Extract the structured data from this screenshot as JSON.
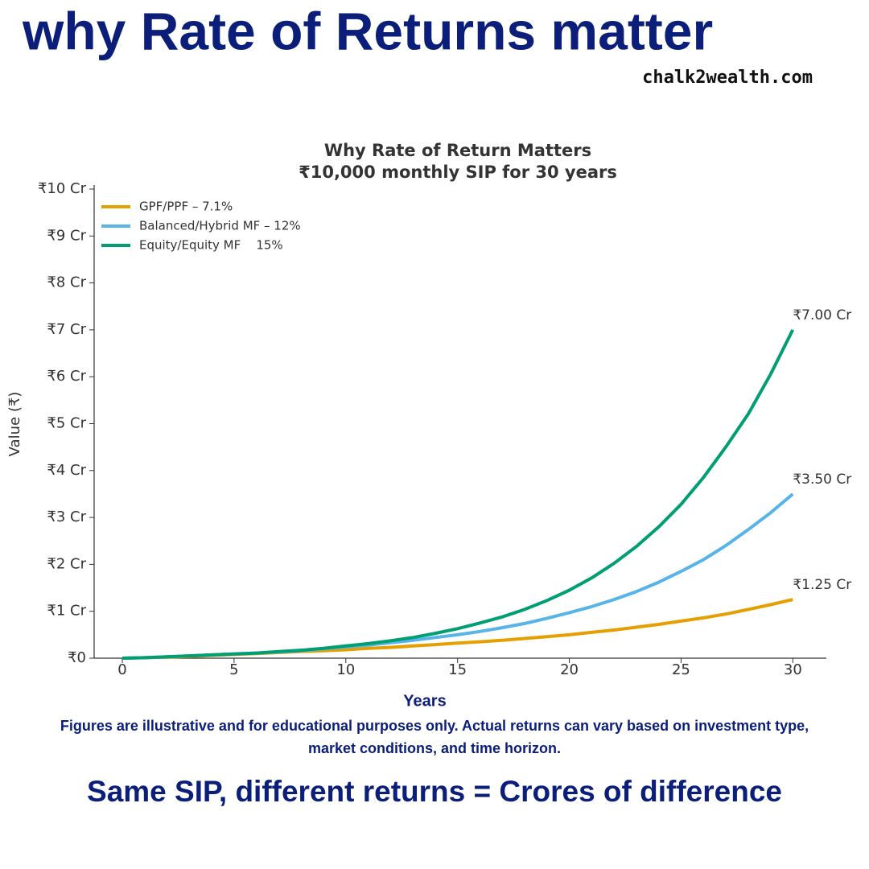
{
  "header": {
    "title": "why Rate of Returns matter",
    "site": "chalk2wealth.com"
  },
  "chart_data": {
    "type": "line",
    "title": "Why Rate of Return Matters",
    "subtitle": "₹10,000 monthly SIP for 30 years",
    "x_label": "Years",
    "y_label": "Value (₹)",
    "x": [
      0,
      1,
      2,
      3,
      4,
      5,
      6,
      7,
      8,
      9,
      10,
      11,
      12,
      13,
      14,
      15,
      16,
      17,
      18,
      19,
      20,
      21,
      22,
      23,
      24,
      25,
      26,
      27,
      28,
      29,
      30
    ],
    "xlim": [
      -1.26,
      31.5
    ],
    "xticks": [
      0,
      5,
      10,
      15,
      20,
      25,
      30
    ],
    "ylim": [
      0,
      10
    ],
    "yticks": [
      {
        "value": 0,
        "label": "₹0"
      },
      {
        "value": 1,
        "label": "₹1 Cr"
      },
      {
        "value": 2,
        "label": "₹2 Cr"
      },
      {
        "value": 3,
        "label": "₹3 Cr"
      },
      {
        "value": 4,
        "label": "₹4 Cr"
      },
      {
        "value": 5,
        "label": "₹5 Cr"
      },
      {
        "value": 6,
        "label": "₹6 Cr"
      },
      {
        "value": 7,
        "label": "₹7 Cr"
      },
      {
        "value": 8,
        "label": "₹8 Cr"
      },
      {
        "value": 9,
        "label": "₹9 Cr"
      },
      {
        "value": 10,
        "label": "₹10 Cr"
      }
    ],
    "legend": "upper left",
    "series": [
      {
        "name": "GPF/PPF – 7.1%",
        "color": "#e69f00",
        "values": [
          0,
          0.01,
          0.02,
          0.04,
          0.06,
          0.08,
          0.1,
          0.12,
          0.14,
          0.16,
          0.18,
          0.21,
          0.23,
          0.26,
          0.29,
          0.32,
          0.35,
          0.38,
          0.42,
          0.46,
          0.5,
          0.55,
          0.6,
          0.66,
          0.72,
          0.79,
          0.86,
          0.94,
          1.04,
          1.14,
          1.25
        ],
        "value_labels": [
          null,
          null,
          null,
          null,
          null,
          null,
          null,
          null,
          null,
          null,
          null,
          null,
          null,
          null,
          null,
          null,
          null,
          null,
          null,
          null,
          null,
          null,
          null,
          null,
          null,
          null,
          null,
          null,
          null,
          null,
          "₹1.25 Cr"
        ]
      },
      {
        "name": "Balanced/Hybrid MF – 12%",
        "color": "#56b4e9",
        "values": [
          0,
          0.01,
          0.03,
          0.05,
          0.07,
          0.09,
          0.11,
          0.13,
          0.16,
          0.2,
          0.24,
          0.28,
          0.33,
          0.38,
          0.44,
          0.5,
          0.57,
          0.65,
          0.74,
          0.85,
          0.97,
          1.1,
          1.25,
          1.42,
          1.62,
          1.85,
          2.1,
          2.4,
          2.74,
          3.1,
          3.5
        ],
        "value_labels": [
          null,
          null,
          null,
          null,
          null,
          null,
          null,
          null,
          null,
          null,
          null,
          null,
          null,
          null,
          null,
          null,
          null,
          null,
          null,
          null,
          null,
          null,
          null,
          null,
          null,
          null,
          null,
          null,
          null,
          null,
          "₹3.50 Cr"
        ]
      },
      {
        "name": "Equity/Equity MF    15%",
        "color": "#009e73",
        "values": [
          0,
          0.01,
          0.03,
          0.05,
          0.07,
          0.09,
          0.11,
          0.14,
          0.17,
          0.21,
          0.26,
          0.31,
          0.37,
          0.44,
          0.53,
          0.63,
          0.75,
          0.88,
          1.04,
          1.23,
          1.45,
          1.71,
          2.02,
          2.38,
          2.8,
          3.28,
          3.85,
          4.5,
          5.2,
          6.05,
          7.0
        ],
        "value_labels": [
          null,
          null,
          null,
          null,
          null,
          null,
          null,
          null,
          null,
          null,
          null,
          null,
          null,
          null,
          null,
          null,
          null,
          null,
          null,
          null,
          null,
          null,
          null,
          null,
          null,
          null,
          null,
          null,
          null,
          null,
          "₹7.00 Cr"
        ]
      }
    ]
  },
  "footer": {
    "note": "Figures are illustrative and for educational purposes only. Actual returns can vary based on investment type, market conditions, and time horizon.",
    "tagline": "Same SIP, different returns = Crores of difference"
  }
}
